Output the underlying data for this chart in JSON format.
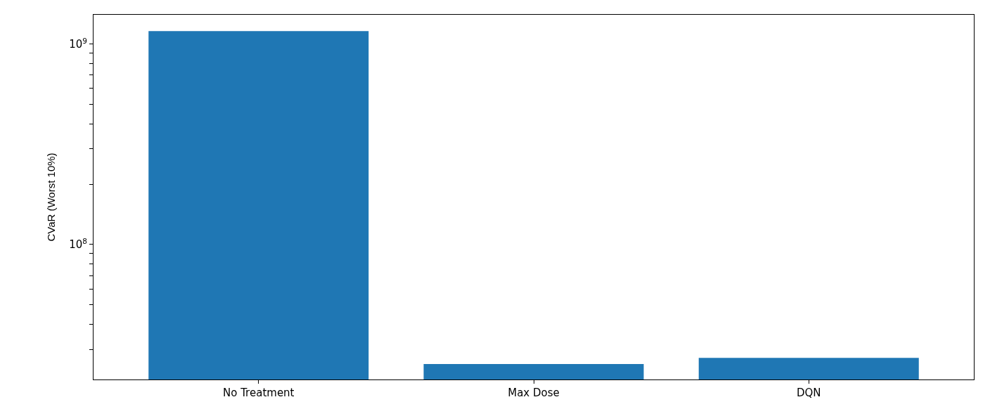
{
  "chart_data": {
    "type": "bar",
    "ylabel": "CVaR (Worst 10%)",
    "categories": [
      "No Treatment",
      "Max Dose",
      "DQN"
    ],
    "values": [
      1160000000.0,
      25300000.0,
      27200000.0
    ],
    "color": "#1f77b4",
    "log": true,
    "ylim": [
      21200000.0,
      1400000000.0
    ],
    "yticks": [
      {
        "value": 30000000.0,
        "label": null
      },
      {
        "value": 40000000.0,
        "label": null
      },
      {
        "value": 50000000.0,
        "label": null
      },
      {
        "value": 60000000.0,
        "label": null
      },
      {
        "value": 70000000.0,
        "label": null
      },
      {
        "value": 80000000.0,
        "label": null
      },
      {
        "value": 90000000.0,
        "label": null
      },
      {
        "value": 100000000.0,
        "label": "10$^{8}$"
      },
      {
        "value": 200000000.0,
        "label": null
      },
      {
        "value": 300000000.0,
        "label": null
      },
      {
        "value": 400000000.0,
        "label": null
      },
      {
        "value": 500000000.0,
        "label": null
      },
      {
        "value": 600000000.0,
        "label": null
      },
      {
        "value": 700000000.0,
        "label": null
      },
      {
        "value": 800000000.0,
        "label": null
      },
      {
        "value": 900000000.0,
        "label": null
      },
      {
        "value": 1000000000.0,
        "label": "10$^{9}$"
      }
    ]
  }
}
